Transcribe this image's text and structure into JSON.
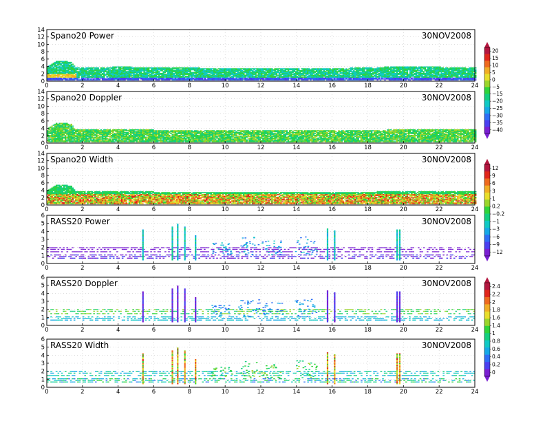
{
  "date_label": "30NOV2008",
  "colors": {
    "palette": [
      "#7a1fd2",
      "#4a3ff0",
      "#2e6ef5",
      "#16a8e6",
      "#10c9c4",
      "#14cf7e",
      "#2fd43a",
      "#9ad52b",
      "#e8de2c",
      "#f1ad25",
      "#ee6a1e",
      "#e0261b",
      "#b4163f"
    ]
  },
  "chart_data": [
    {
      "type": "heatmap",
      "title": "Spano20 Power",
      "ylim": [
        0,
        14
      ],
      "yticks": [
        0,
        2,
        4,
        6,
        8,
        10,
        12,
        14
      ],
      "xlim": [
        0,
        24
      ],
      "xticks": [
        0,
        2,
        4,
        6,
        8,
        10,
        12,
        14,
        16,
        18,
        20,
        22,
        24
      ],
      "grid": true,
      "colorbar": {
        "labels": [
          "20",
          "15",
          "10",
          "5",
          "0",
          "−5",
          "−15",
          "−20",
          "−25",
          "−30",
          "−35",
          "−40"
        ]
      },
      "heights": [
        {
          "t": 0,
          "h": 4.0
        },
        {
          "t": 0.5,
          "h": 5.5
        },
        {
          "t": 1.3,
          "h": 5.2
        },
        {
          "t": 1.6,
          "h": 3.5
        },
        {
          "t": 4,
          "h": 3.8
        },
        {
          "t": 10,
          "h": 3.4
        },
        {
          "t": 17,
          "h": 3.5
        },
        {
          "t": 20,
          "h": 3.9
        },
        {
          "t": 24,
          "h": 3.6
        }
      ]
    },
    {
      "type": "heatmap",
      "title": "Spano20 Doppler",
      "ylim": [
        0,
        14
      ],
      "yticks": [
        0,
        2,
        4,
        6,
        8,
        10,
        12,
        14
      ],
      "xlim": [
        0,
        24
      ],
      "xticks": [
        0,
        2,
        4,
        6,
        8,
        10,
        12,
        14,
        16,
        18,
        20,
        22,
        24
      ],
      "grid": true,
      "heights": [
        {
          "t": 0,
          "h": 4.0
        },
        {
          "t": 0.5,
          "h": 5.5
        },
        {
          "t": 1.3,
          "h": 5.2
        },
        {
          "t": 1.6,
          "h": 3.5
        },
        {
          "t": 4,
          "h": 3.6
        },
        {
          "t": 10,
          "h": 3.3
        },
        {
          "t": 17,
          "h": 3.3
        },
        {
          "t": 20,
          "h": 3.6
        },
        {
          "t": 24,
          "h": 3.5
        }
      ]
    },
    {
      "type": "heatmap",
      "title": "Spano20 Width",
      "ylim": [
        0,
        14
      ],
      "yticks": [
        0,
        2,
        4,
        6,
        8,
        10,
        12,
        14
      ],
      "xlim": [
        0,
        24
      ],
      "xticks": [
        0,
        2,
        4,
        6,
        8,
        10,
        12,
        14,
        16,
        18,
        20,
        22,
        24
      ],
      "grid": true,
      "colorbar": {
        "labels": [
          "12",
          "9",
          "6",
          "3",
          "1",
          "0.2",
          "−0.2",
          "−1",
          "−3",
          "−6",
          "−9",
          "−12"
        ]
      },
      "heights": [
        {
          "t": 0,
          "h": 4.0
        },
        {
          "t": 0.5,
          "h": 5.5
        },
        {
          "t": 1.3,
          "h": 5.2
        },
        {
          "t": 1.6,
          "h": 3.5
        },
        {
          "t": 4,
          "h": 3.6
        },
        {
          "t": 10,
          "h": 3.3
        },
        {
          "t": 17,
          "h": 3.4
        },
        {
          "t": 20,
          "h": 3.6
        },
        {
          "t": 24,
          "h": 3.5
        }
      ]
    },
    {
      "type": "heatmap",
      "title": "RASS20 Power",
      "ylim": [
        0,
        6
      ],
      "yticks": [
        0,
        1,
        2,
        3,
        4,
        5,
        6
      ],
      "xlim": [
        0,
        24
      ],
      "xticks": [
        0,
        2,
        4,
        6,
        8,
        10,
        12,
        14,
        16,
        18,
        20,
        22,
        24
      ],
      "grid": true,
      "spikes": [
        {
          "t": 5.35,
          "h": 4.2
        },
        {
          "t": 7.0,
          "h": 4.5
        },
        {
          "t": 7.3,
          "h": 4.9
        },
        {
          "t": 7.7,
          "h": 4.5
        },
        {
          "t": 8.3,
          "h": 3.5
        },
        {
          "t": 15.7,
          "h": 4.3
        },
        {
          "t": 16.1,
          "h": 4.1
        },
        {
          "t": 19.6,
          "h": 4.2
        },
        {
          "t": 19.75,
          "h": 4.2
        }
      ],
      "clusters": [
        {
          "t": 11.3,
          "h": 3.2
        },
        {
          "t": 12.6,
          "h": 2.8
        },
        {
          "t": 14.5,
          "h": 3.3
        },
        {
          "t": 9.8,
          "h": 2.5
        }
      ]
    },
    {
      "type": "heatmap",
      "title": "RASS20 Doppler",
      "ylim": [
        0,
        6
      ],
      "yticks": [
        0,
        1,
        2,
        3,
        4,
        5,
        6
      ],
      "xlim": [
        0,
        24
      ],
      "xticks": [
        0,
        2,
        4,
        6,
        8,
        10,
        12,
        14,
        16,
        18,
        20,
        22,
        24
      ],
      "grid": true,
      "colorbar": {
        "labels": [
          "2.4",
          "2.2",
          "2",
          "1.8",
          "1.6",
          "1.4",
          "1",
          "0.8",
          "0.6",
          "0.4",
          "0.2",
          "0"
        ]
      },
      "spikes": [
        {
          "t": 5.35,
          "h": 4.2
        },
        {
          "t": 7.0,
          "h": 4.5
        },
        {
          "t": 7.3,
          "h": 4.9
        },
        {
          "t": 7.7,
          "h": 4.5
        },
        {
          "t": 8.3,
          "h": 3.5
        },
        {
          "t": 15.7,
          "h": 4.3
        },
        {
          "t": 16.1,
          "h": 4.1
        },
        {
          "t": 19.6,
          "h": 4.2
        },
        {
          "t": 19.75,
          "h": 4.2
        }
      ],
      "clusters": [
        {
          "t": 11.3,
          "h": 3.2
        },
        {
          "t": 12.6,
          "h": 2.8
        },
        {
          "t": 14.5,
          "h": 3.3
        },
        {
          "t": 9.8,
          "h": 2.5
        }
      ]
    },
    {
      "type": "heatmap",
      "title": "RASS20 Width",
      "ylim": [
        0,
        6
      ],
      "yticks": [
        0,
        1,
        2,
        3,
        4,
        5,
        6
      ],
      "xlim": [
        0,
        24
      ],
      "xticks": [
        0,
        2,
        4,
        6,
        8,
        10,
        12,
        14,
        16,
        18,
        20,
        22,
        24
      ],
      "grid": true,
      "spikes": [
        {
          "t": 5.35,
          "h": 4.2
        },
        {
          "t": 7.0,
          "h": 4.5
        },
        {
          "t": 7.3,
          "h": 4.9
        },
        {
          "t": 7.7,
          "h": 4.5
        },
        {
          "t": 8.3,
          "h": 3.5
        },
        {
          "t": 15.7,
          "h": 4.3
        },
        {
          "t": 16.1,
          "h": 4.1
        },
        {
          "t": 19.6,
          "h": 4.2
        },
        {
          "t": 19.75,
          "h": 4.2
        }
      ],
      "clusters": [
        {
          "t": 11.3,
          "h": 3.2
        },
        {
          "t": 12.6,
          "h": 2.8
        },
        {
          "t": 14.5,
          "h": 3.3
        },
        {
          "t": 9.8,
          "h": 2.5
        }
      ]
    }
  ]
}
